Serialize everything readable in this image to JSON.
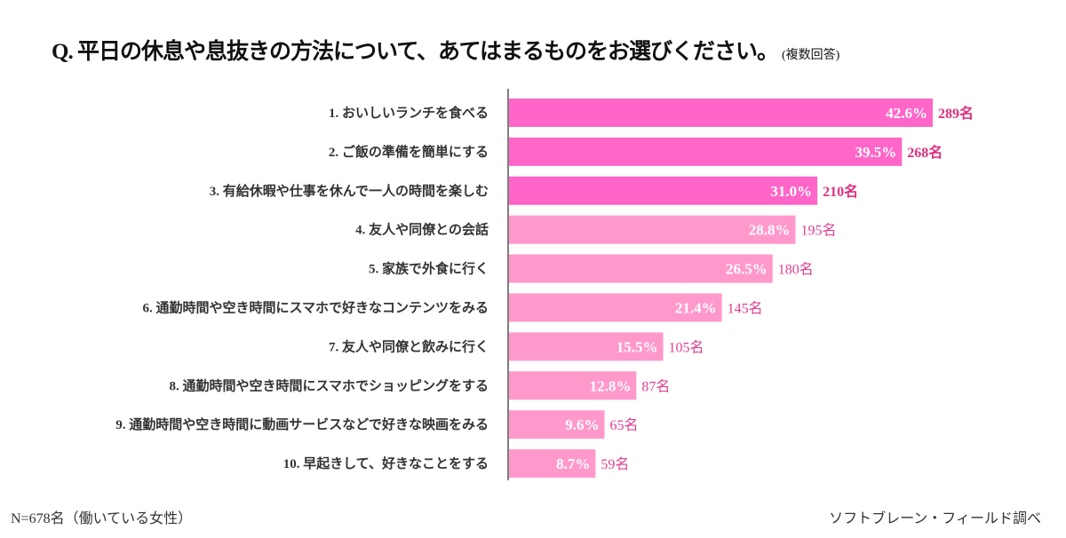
{
  "title": "Q.  平日の休息や息抜きの方法について、あてはまるものをお選びください。",
  "title_note": "(複数回答)",
  "footer_left": "N=678名（働いている女性）",
  "footer_right": "ソフトブレーン・フィールド調べ",
  "colors": {
    "top": "#ff66c8",
    "rest": "#ff99cc",
    "count": "#e0408f"
  },
  "chart_data": {
    "type": "bar",
    "orientation": "horizontal",
    "title": "Q.  平日の休息や息抜きの方法について、あてはまるものをお選びください。",
    "categories": [
      "1. おいしいランチを食べる",
      "2. ご飯の準備を簡単にする",
      "3. 有給休暇や仕事を休んで一人の時間を楽しむ",
      "4. 友人や同僚との会話",
      "5. 家族で外食に行く",
      "6. 通勤時間や空き時間にスマホで好きなコンテンツをみる",
      "7. 友人や同僚と飲みに行く",
      "8. 通勤時間や空き時間にスマホでショッピングをする",
      "9. 通勤時間や空き時間に動画サービスなどで好きな映画をみる",
      "10. 早起きして、好きなことをする"
    ],
    "values": [
      42.6,
      39.5,
      31.0,
      28.8,
      26.5,
      21.4,
      15.5,
      12.8,
      9.6,
      8.7
    ],
    "value_labels": [
      "42.6%",
      "39.5%",
      "31.0%",
      "28.8%",
      "26.5%",
      "21.4%",
      "15.5%",
      "12.8%",
      "9.6%",
      "8.7%"
    ],
    "counts": [
      "289名",
      "268名",
      "210名",
      "195名",
      "180名",
      "145名",
      "105名",
      "87名",
      "65名",
      "59名"
    ],
    "highlight_top": 3,
    "unit": "%",
    "xlim": [
      0,
      45
    ]
  }
}
